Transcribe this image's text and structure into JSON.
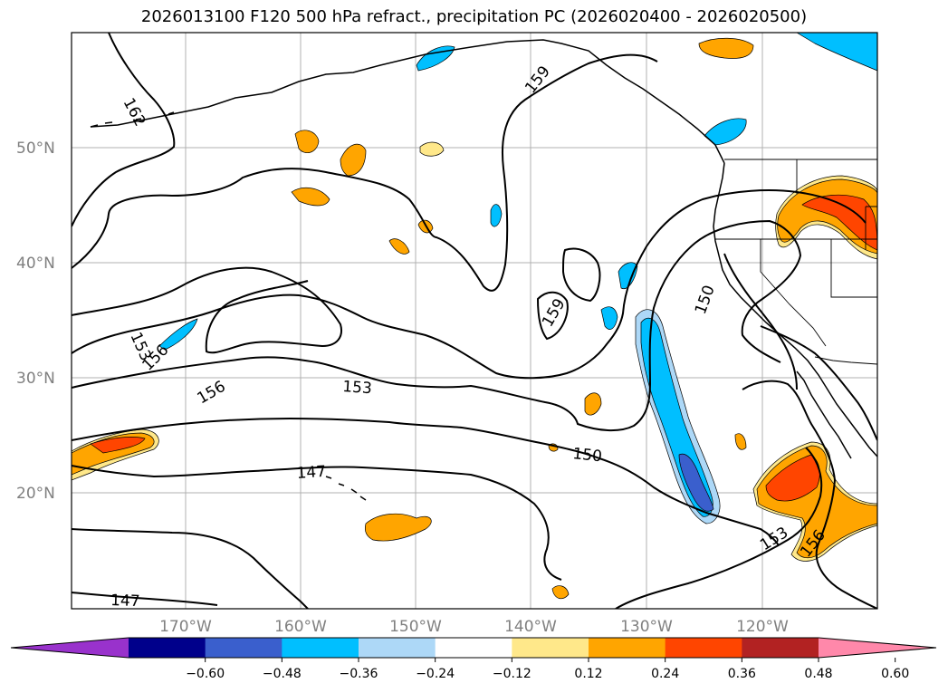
{
  "title": "2026013100 F120 500 hPa refract., precipitation PC (2026020400 - 2026020500)",
  "map": {
    "lat_labels": [
      "50°N",
      "40°N",
      "30°N",
      "20°N"
    ],
    "lon_labels": [
      "170°W",
      "160°W",
      "150°W",
      "140°W",
      "130°W",
      "120°W"
    ],
    "contour_labels": [
      "162",
      "159",
      "159",
      "156",
      "156",
      "153",
      "153",
      "153",
      "150",
      "150",
      "147",
      "147",
      "153",
      "156"
    ]
  },
  "colorbar": {
    "colors": [
      "#9932cc",
      "#00008b",
      "#3a5fcd",
      "#00bfff",
      "#add8f7",
      "#ffffff",
      "#ffe88a",
      "#ffa500",
      "#ff4500",
      "#b22222",
      "#ff88aa"
    ],
    "tick_labels": [
      "−0.60",
      "−0.48",
      "−0.36",
      "−0.24",
      "−0.12",
      "0.12",
      "0.24",
      "0.36",
      "0.48",
      "0.60"
    ]
  }
}
